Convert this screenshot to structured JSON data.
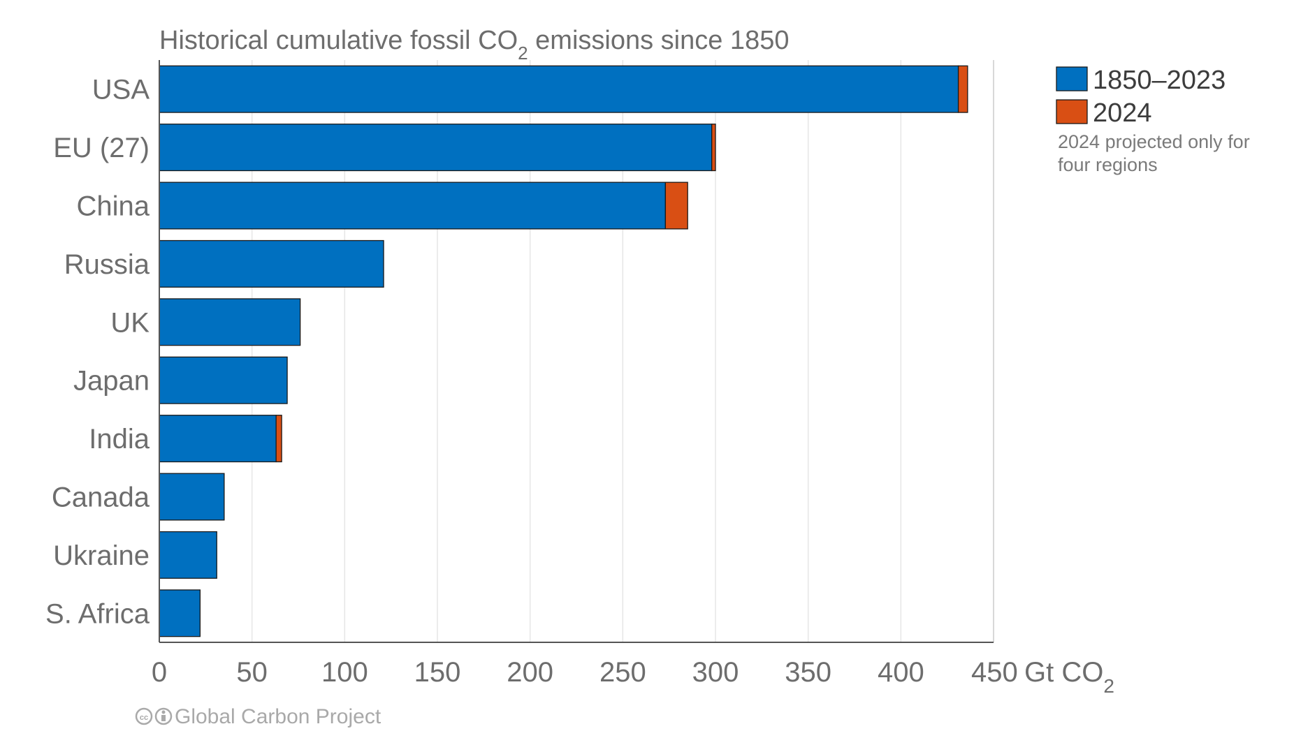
{
  "chart_data": {
    "type": "bar",
    "orientation": "horizontal",
    "stacked": true,
    "title": "Historical cumulative fossil CO₂ emissions since 1850",
    "xlabel": "Gt CO₂",
    "ylabel": "",
    "categories": [
      "USA",
      "EU (27)",
      "China",
      "Russia",
      "UK",
      "Japan",
      "India",
      "Canada",
      "Ukraine",
      "S. Africa"
    ],
    "series": [
      {
        "name": "1850–2023",
        "color": "#0070c0",
        "values": [
          431,
          298,
          273,
          121,
          76,
          69,
          63,
          35,
          31,
          22
        ]
      },
      {
        "name": "2024",
        "color": "#d94f14",
        "values": [
          5,
          2,
          12,
          0,
          0,
          0,
          3,
          0,
          0,
          0
        ]
      }
    ],
    "xlim": [
      0,
      450
    ],
    "xticks": [
      0,
      50,
      100,
      150,
      200,
      250,
      300,
      350,
      400,
      450
    ],
    "grid": true,
    "legend_position": "top-right",
    "legend_note": [
      "2024 projected only for",
      "four regions"
    ]
  },
  "credit": {
    "icon": "creative-commons-icon",
    "text": "Global Carbon Project"
  }
}
